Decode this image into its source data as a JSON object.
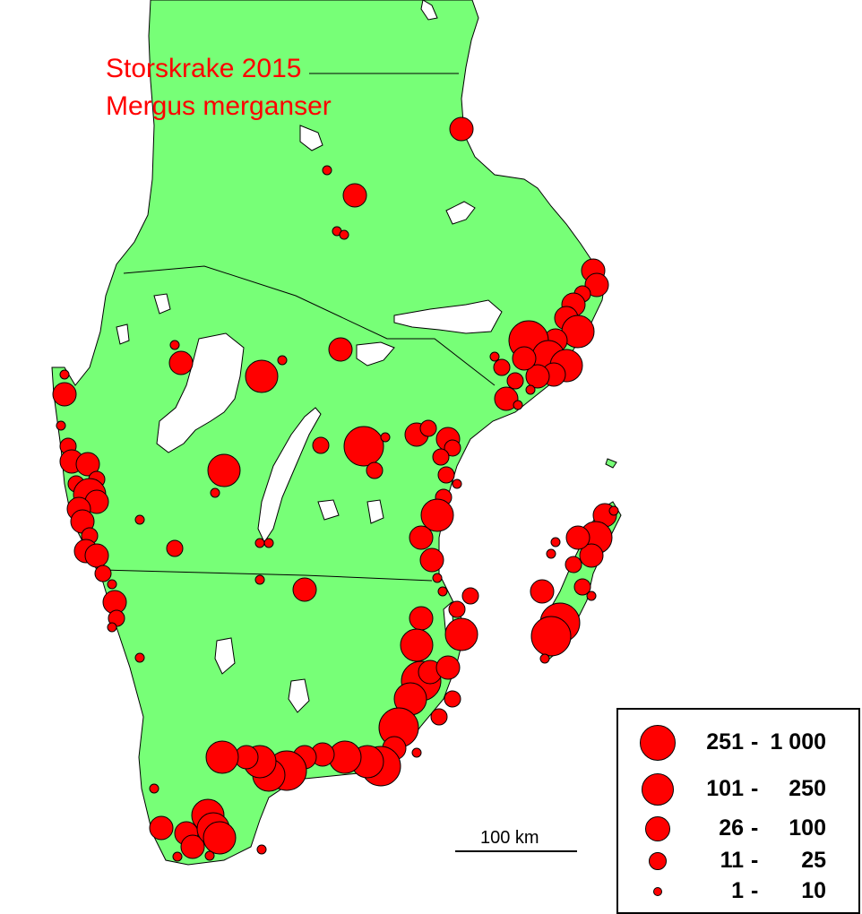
{
  "title": {
    "line1": "Storskrake 2015",
    "line2": "Mergus merganser"
  },
  "colors": {
    "land": "#77ff77",
    "lakes": "#ffffff",
    "symbol": "#ff0000",
    "outline": "#000000",
    "title": "#ff0000"
  },
  "legend": {
    "classes": [
      {
        "low": "251",
        "high": "1 000",
        "size_class": 5
      },
      {
        "low": "101",
        "high": "250",
        "size_class": 4
      },
      {
        "low": "26",
        "high": "100",
        "size_class": 3
      },
      {
        "low": "11",
        "high": "25",
        "size_class": 2
      },
      {
        "low": "1",
        "high": "10",
        "size_class": 1
      }
    ]
  },
  "scale": {
    "label": "100 km"
  }
}
